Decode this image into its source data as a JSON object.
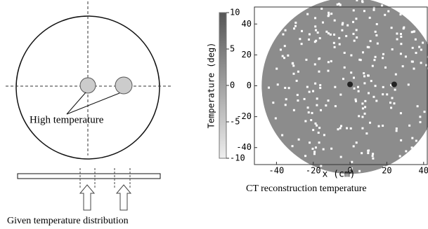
{
  "left_panel": {
    "label": "High temperature",
    "caption": "Given temperature distribution"
  },
  "right_panel": {
    "colorbar": {
      "label": "Temperature (deg)",
      "lim": [
        -10,
        10
      ],
      "ticks": [
        10,
        5,
        0,
        -5,
        -10
      ]
    },
    "xlabel": "x (cm)",
    "xlim": [
      -52,
      42
    ],
    "xticks": [
      -40,
      -20,
      0,
      20,
      40
    ],
    "ylim": [
      -51,
      51
    ],
    "yticks": [
      40,
      20,
      0,
      -20,
      -40
    ],
    "caption": "CT reconstruction temperature"
  }
}
